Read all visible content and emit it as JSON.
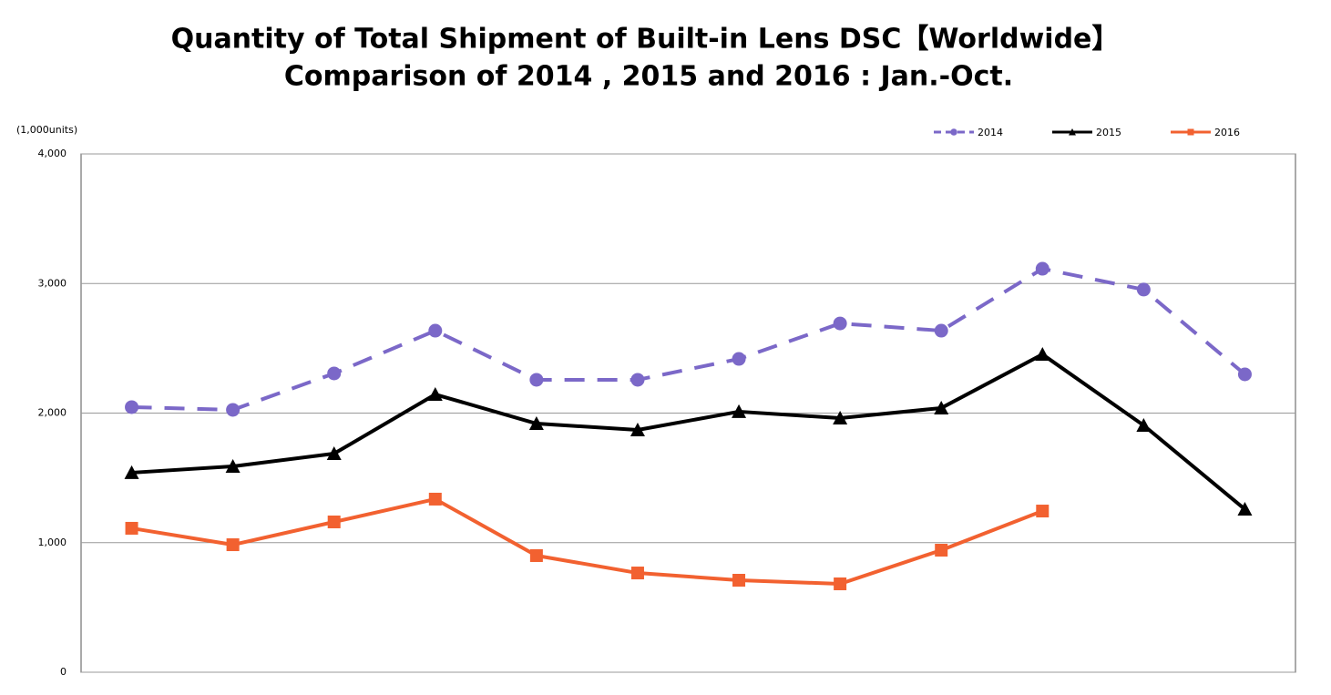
{
  "chart_data": {
    "type": "line",
    "title": "Quantity of Total Shipment of Built-in Lens DSC【Worldwide】",
    "subtitle": "Comparison of 2014 , 2015 and 2016 : Jan.-Oct.",
    "y_axis_label": "(1,000units)",
    "categories": [
      null,
      null,
      null,
      null,
      null,
      null,
      null,
      null,
      null,
      null,
      null,
      null
    ],
    "series": [
      {
        "name": "2014",
        "color": "#7b68c8",
        "style": "dashed",
        "marker": "circle",
        "values": [
          2046,
          2025,
          2306,
          2636,
          2257,
          2257,
          2418,
          2692,
          2636,
          3114,
          2953,
          2299
        ]
      },
      {
        "name": "2015",
        "color": "#000000",
        "style": "solid",
        "marker": "triangle",
        "values": [
          1540,
          1589,
          1687,
          2144,
          1919,
          1870,
          2011,
          1961,
          2039,
          2453,
          1905,
          1258
        ]
      },
      {
        "name": "2016",
        "color": "#f26130",
        "style": "solid",
        "marker": "square",
        "values": [
          1111,
          984,
          1160,
          1336,
          900,
          766,
          710,
          682,
          942,
          1244,
          null,
          null
        ]
      }
    ],
    "ylim": [
      0,
      4000
    ],
    "yticks": [
      0,
      {
        "value": 1000,
        "label": "1,000"
      },
      {
        "value": 2000,
        "label": "2,000"
      },
      {
        "value": 3000,
        "label": "3,000"
      },
      {
        "value": 4000,
        "label": "4,000"
      }
    ],
    "grid": true,
    "legend": "top-right"
  }
}
